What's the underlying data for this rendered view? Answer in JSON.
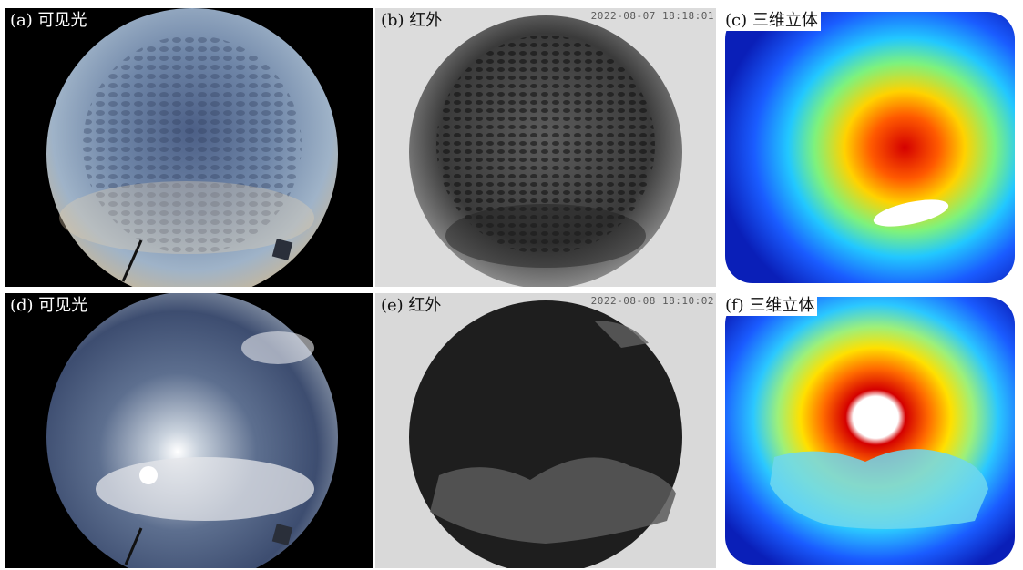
{
  "panels": [
    {
      "label": "(a) 可见光",
      "type": "visible"
    },
    {
      "label": "(b) 红外",
      "type": "infrared",
      "timestamp": "2022-08-07 18:18:01"
    },
    {
      "label": "(c) 三维立体",
      "type": "3d"
    },
    {
      "label": "(d) 可见光",
      "type": "visible"
    },
    {
      "label": "(e) 红外",
      "type": "infrared",
      "timestamp": "2022-08-08 18:10:02"
    },
    {
      "label": "(f) 三维立体",
      "type": "3d"
    }
  ]
}
